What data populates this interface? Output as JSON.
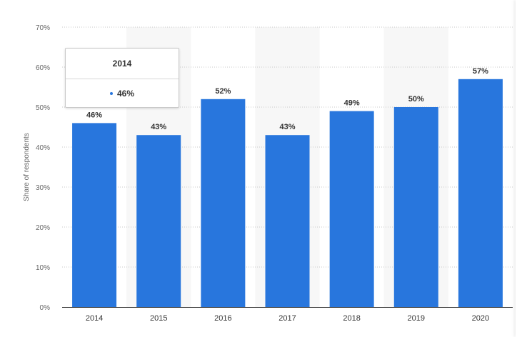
{
  "chart_data": {
    "type": "bar",
    "categories": [
      "2014",
      "2015",
      "2016",
      "2017",
      "2018",
      "2019",
      "2020"
    ],
    "values": [
      46,
      43,
      52,
      43,
      49,
      50,
      57
    ],
    "value_labels": [
      "46%",
      "43%",
      "52%",
      "43%",
      "49%",
      "50%",
      "57%"
    ],
    "ylabel": "Share of respondents",
    "ylim": [
      0,
      70
    ],
    "y_ticks": [
      0,
      10,
      20,
      30,
      40,
      50,
      60,
      70
    ],
    "y_tick_labels": [
      "0%",
      "10%",
      "20%",
      "30%",
      "40%",
      "50%",
      "60%",
      "70%"
    ],
    "grid": true,
    "bar_color": "#2876dd",
    "band_color": "#f7f7f7",
    "grid_color": "#c8c8c8"
  },
  "tooltip": {
    "title": "2014",
    "value": "46%",
    "dot_color": "#2876dd"
  }
}
